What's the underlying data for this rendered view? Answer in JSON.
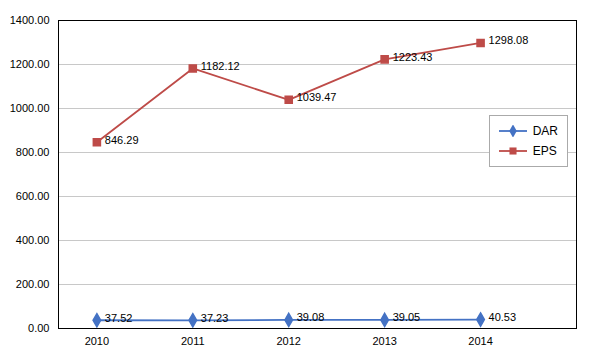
{
  "chart_data": {
    "type": "line",
    "x": [
      2010,
      2011,
      2012,
      2013,
      2014
    ],
    "series": [
      {
        "name": "DAR",
        "color": "#4472C4",
        "marker": "diamond",
        "values": [
          37.52,
          37.23,
          39.08,
          39.05,
          40.53
        ]
      },
      {
        "name": "EPS",
        "color": "#BE4B48",
        "marker": "square",
        "values": [
          846.29,
          1182.12,
          1039.47,
          1223.43,
          1298.08
        ]
      }
    ],
    "xlim": [
      2009.6,
      2015.0
    ],
    "xticks": [
      2010,
      2011,
      2012,
      2013,
      2014
    ],
    "ylim": [
      0,
      1400
    ],
    "yticks": [
      {
        "value": 0,
        "label": "0.00"
      },
      {
        "value": 200,
        "label": "200.00"
      },
      {
        "value": 400,
        "label": "400.00"
      },
      {
        "value": 600,
        "label": "600.00"
      },
      {
        "value": 800,
        "label": "800.00"
      },
      {
        "value": 1000,
        "label": "1000.00"
      },
      {
        "value": 1200,
        "label": "1200.00"
      },
      {
        "value": 1400,
        "label": "1400.00"
      }
    ],
    "grid": true,
    "legend": "right",
    "data_labels": true
  }
}
